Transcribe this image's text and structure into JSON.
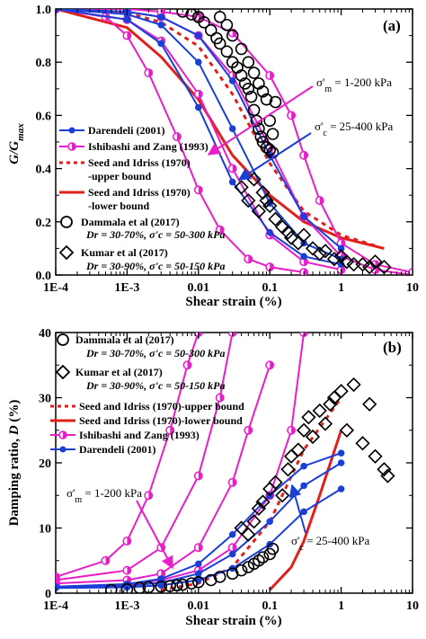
{
  "chart_data": [
    {
      "type": "line",
      "panel_label": "(a)",
      "xlabel": "Shear strain (%)",
      "ylabel": "G/G_max",
      "xscale": "log",
      "xlim": [
        0.0001,
        10
      ],
      "ylim": [
        0,
        1.0
      ],
      "xticks": [
        "1E-4",
        "1E-3",
        "0.01",
        "0.1",
        "1",
        "10"
      ],
      "yticks": [
        "0.0",
        "0.2",
        "0.4",
        "0.6",
        "0.8",
        "1.0"
      ],
      "legend": [
        {
          "id": "darendeli",
          "text": "Darendeli (2001)"
        },
        {
          "id": "ishibashi",
          "text": "Ishibashi and Zang (1993)"
        },
        {
          "id": "seed_upper",
          "text": "Seed and Idriss (1970)"
        },
        {
          "id": "seed_upper_2",
          "text": "-upper bound"
        },
        {
          "id": "seed_lower",
          "text": "Seed and Idriss (1970)"
        },
        {
          "id": "seed_lower_2",
          "text": "-lower bound"
        },
        {
          "id": "dammala",
          "text": "Dammala et al (2017)"
        },
        {
          "id": "dammala_2",
          "text": "Dr = 30-70%, σ'c = 50-300 kPa"
        },
        {
          "id": "kumar",
          "text": "Kumar et al (2017)"
        },
        {
          "id": "kumar_2",
          "text": "Dr = 30-90%, σ'c = 50-150 kPa"
        }
      ],
      "annotations": [
        "σ'm = 1-200 kPa",
        "σ'c = 25-400 kPa"
      ],
      "series": [
        {
          "name": "Seed and Idriss (1970)-upper bound",
          "style": "dashed",
          "color": "#e0201b",
          "x": [
            0.0001,
            0.001,
            0.003,
            0.01,
            0.03,
            0.1,
            0.3,
            1,
            3
          ],
          "y": [
            1.0,
            0.985,
            0.95,
            0.86,
            0.68,
            0.42,
            0.24,
            0.15,
            0.11
          ]
        },
        {
          "name": "Seed and Idriss (1970)-lower bound",
          "style": "solid",
          "color": "#e0201b",
          "x": [
            0.0001,
            0.001,
            0.003,
            0.01,
            0.03,
            0.1,
            0.3,
            1,
            4
          ],
          "y": [
            1.0,
            0.93,
            0.82,
            0.66,
            0.45,
            0.3,
            0.2,
            0.14,
            0.1
          ]
        },
        {
          "name": "Ishibashi and Zang (1993) σ'm=1",
          "color": "#e81ec8",
          "x": [
            0.0001,
            0.0005,
            0.001,
            0.002,
            0.005,
            0.01,
            0.02,
            0.05,
            0.1,
            0.3
          ],
          "y": [
            1.0,
            0.97,
            0.9,
            0.76,
            0.52,
            0.32,
            0.17,
            0.06,
            0.03,
            0.01
          ]
        },
        {
          "name": "Ishibashi and Zang (1993) σ'm=10",
          "color": "#e81ec8",
          "x": [
            0.0001,
            0.001,
            0.003,
            0.01,
            0.03,
            0.1,
            0.3,
            1
          ],
          "y": [
            1.0,
            0.96,
            0.88,
            0.68,
            0.4,
            0.15,
            0.05,
            0.02
          ]
        },
        {
          "name": "Ishibashi and Zang (1993) σ'm=50",
          "color": "#e81ec8",
          "x": [
            0.0001,
            0.001,
            0.003,
            0.01,
            0.03,
            0.1,
            0.3,
            1,
            3,
            10
          ],
          "y": [
            1.0,
            0.99,
            0.97,
            0.9,
            0.75,
            0.48,
            0.22,
            0.07,
            0.02,
            0.0
          ]
        },
        {
          "name": "Ishibashi and Zang (1993) σ'm=200",
          "color": "#e81ec8",
          "x": [
            0.0001,
            0.001,
            0.003,
            0.01,
            0.03,
            0.1,
            0.2,
            0.3,
            0.5,
            1,
            3,
            10
          ],
          "y": [
            1.0,
            1.0,
            0.99,
            0.97,
            0.91,
            0.75,
            0.6,
            0.45,
            0.28,
            0.12,
            0.04,
            0.01
          ]
        },
        {
          "name": "Darendeli (2001) σ'c=25",
          "color": "#1a3fd6",
          "x": [
            0.0001,
            0.001,
            0.003,
            0.01,
            0.03,
            0.1,
            0.3,
            1
          ],
          "y": [
            1.0,
            0.96,
            0.87,
            0.63,
            0.35,
            0.16,
            0.07,
            0.04
          ]
        },
        {
          "name": "Darendeli (2001) σ'c=100",
          "color": "#1a3fd6",
          "x": [
            0.0001,
            0.001,
            0.003,
            0.01,
            0.03,
            0.1,
            0.3,
            1
          ],
          "y": [
            1.0,
            0.98,
            0.94,
            0.8,
            0.55,
            0.27,
            0.12,
            0.06
          ]
        },
        {
          "name": "Darendeli (2001) σ'c=400",
          "color": "#1a3fd6",
          "x": [
            0.0001,
            0.001,
            0.003,
            0.01,
            0.03,
            0.1,
            0.3,
            1
          ],
          "y": [
            1.0,
            0.99,
            0.97,
            0.9,
            0.73,
            0.45,
            0.22,
            0.1
          ]
        },
        {
          "name": "Dammala et al (2017)",
          "marker": "circle",
          "x": [
            0.006,
            0.008,
            0.01,
            0.012,
            0.015,
            0.018,
            0.02,
            0.025,
            0.03,
            0.035,
            0.04,
            0.045,
            0.05,
            0.055,
            0.06,
            0.065,
            0.07,
            0.075,
            0.08,
            0.09,
            0.1,
            0.11
          ],
          "y": [
            0.99,
            0.98,
            0.97,
            0.95,
            0.92,
            0.89,
            0.87,
            0.84,
            0.8,
            0.78,
            0.75,
            0.72,
            0.7,
            0.67,
            0.62,
            0.58,
            0.55,
            0.52,
            0.5,
            0.48,
            0.47,
            0.46
          ]
        },
        {
          "name": "Dammala et al (2017) set 2",
          "marker": "circle",
          "x": [
            0.02,
            0.025,
            0.03,
            0.04,
            0.05,
            0.06,
            0.07,
            0.08,
            0.09,
            0.1,
            0.11,
            0.12
          ],
          "y": [
            0.97,
            0.94,
            0.9,
            0.85,
            0.8,
            0.76,
            0.72,
            0.69,
            0.66,
            0.58,
            0.53,
            0.65
          ]
        },
        {
          "name": "Kumar et al (2017)",
          "marker": "diamond",
          "x": [
            0.04,
            0.05,
            0.06,
            0.07,
            0.08,
            0.09,
            0.1,
            0.12,
            0.15,
            0.18,
            0.2,
            0.25,
            0.3,
            0.4,
            0.5,
            0.6,
            0.8,
            1.0,
            1.2,
            1.5,
            2.0,
            2.5,
            3.0,
            4.0
          ],
          "y": [
            0.33,
            0.28,
            0.36,
            0.24,
            0.31,
            0.28,
            0.26,
            0.21,
            0.18,
            0.16,
            0.14,
            0.12,
            0.15,
            0.1,
            0.08,
            0.09,
            0.06,
            0.07,
            0.05,
            0.04,
            0.04,
            0.03,
            0.05,
            0.03
          ]
        }
      ]
    },
    {
      "type": "line",
      "panel_label": "(b)",
      "xlabel": "Shear strain (%)",
      "ylabel": "Damping ratio, D (%)",
      "xscale": "log",
      "xlim": [
        0.0001,
        10
      ],
      "ylim": [
        0,
        40
      ],
      "xticks": [
        "1E-4",
        "1E-3",
        "0.01",
        "0.1",
        "1",
        "10"
      ],
      "yticks": [
        "0",
        "10",
        "20",
        "30",
        "40"
      ],
      "legend": [
        {
          "id": "dammala",
          "text": "Dammala et al (2017)"
        },
        {
          "id": "dammala_2",
          "text": "Dr = 30-70%, σ'c = 50-300 kPa"
        },
        {
          "id": "kumar",
          "text": "Kumar et al (2017)"
        },
        {
          "id": "kumar_2",
          "text": "Dr = 30-90%, σ'c = 50-150 kPa"
        },
        {
          "id": "seed_upper",
          "text": "Seed and Idriss (1970)-upper bound"
        },
        {
          "id": "seed_lower",
          "text": "Seed and Idriss (1970)-lower bound"
        },
        {
          "id": "ishibashi",
          "text": "Ishibashi and Zang (1993)"
        },
        {
          "id": "darendeli",
          "text": "Darendeli (2001)"
        }
      ],
      "annotations": [
        "σ'm = 1-200 kPa",
        "σ'c = 25-400 kPa"
      ],
      "series": [
        {
          "name": "Seed and Idriss (1970)-upper bound",
          "style": "dashed",
          "color": "#e0201b",
          "x": [
            0.003,
            0.01,
            0.03,
            0.1,
            0.3,
            1
          ],
          "y": [
            0.5,
            1.5,
            4,
            11,
            22,
            30
          ]
        },
        {
          "name": "Seed and Idriss (1970)-lower bound",
          "style": "solid",
          "color": "#e0201b",
          "x": [
            0.1,
            0.2,
            0.3,
            0.5,
            1
          ],
          "y": [
            0.5,
            4,
            8,
            15,
            25
          ]
        },
        {
          "name": "Ishibashi and Zang (1993) σ'm=1",
          "color": "#e81ec8",
          "x": [
            0.0001,
            0.0005,
            0.001,
            0.002,
            0.004,
            0.007,
            0.01
          ],
          "y": [
            2.5,
            5,
            8,
            15,
            25,
            35,
            40
          ]
        },
        {
          "name": "Ishibashi and Zang (1993) σ'm=10",
          "color": "#e81ec8",
          "x": [
            0.0001,
            0.001,
            0.003,
            0.01,
            0.02,
            0.03
          ],
          "y": [
            2,
            3.5,
            7,
            18,
            30,
            40
          ]
        },
        {
          "name": "Ishibashi and Zang (1993) σ'm=50",
          "color": "#e81ec8",
          "x": [
            0.0001,
            0.001,
            0.003,
            0.01,
            0.03,
            0.05,
            0.1
          ],
          "y": [
            1.5,
            2,
            3,
            7,
            17,
            25,
            35
          ]
        },
        {
          "name": "Ishibashi and Zang (1993) σ'm=200",
          "color": "#e81ec8",
          "x": [
            0.0001,
            0.001,
            0.003,
            0.01,
            0.03,
            0.1,
            0.2,
            0.3
          ],
          "y": [
            1,
            1.3,
            2,
            3.5,
            7,
            15,
            25,
            40
          ]
        },
        {
          "name": "Darendeli (2001) σ'c=25",
          "color": "#1a3fd6",
          "x": [
            0.0001,
            0.001,
            0.003,
            0.01,
            0.03,
            0.1,
            0.3,
            1
          ],
          "y": [
            1,
            1.4,
            2.2,
            4.5,
            9,
            15,
            19.5,
            21.5
          ]
        },
        {
          "name": "Darendeli (2001) σ'c=100",
          "color": "#1a3fd6",
          "x": [
            0.0001,
            0.001,
            0.003,
            0.01,
            0.03,
            0.1,
            0.3,
            1
          ],
          "y": [
            0.9,
            1.1,
            1.6,
            3,
            6,
            11,
            16.5,
            20
          ]
        },
        {
          "name": "Darendeli (2001) σ'c=400",
          "color": "#1a3fd6",
          "x": [
            0.0001,
            0.001,
            0.003,
            0.01,
            0.03,
            0.1,
            0.3,
            1
          ],
          "y": [
            0.8,
            0.9,
            1.2,
            2,
            3.8,
            7.5,
            12.5,
            16
          ]
        },
        {
          "name": "Dammala et al (2017)",
          "marker": "circle",
          "x": [
            0.0006,
            0.001,
            0.0015,
            0.002,
            0.003,
            0.004,
            0.005,
            0.006,
            0.008,
            0.01,
            0.015,
            0.02,
            0.03,
            0.04,
            0.05,
            0.06,
            0.07,
            0.08,
            0.1,
            0.11
          ],
          "y": [
            0.5,
            0.6,
            0.8,
            0.9,
            1.0,
            1.1,
            1.2,
            1.3,
            1.5,
            1.7,
            2.0,
            2.5,
            3.0,
            3.5,
            4.0,
            4.5,
            5.0,
            5.5,
            6.0,
            6.8
          ]
        },
        {
          "name": "Kumar et al (2017)",
          "marker": "diamond",
          "x": [
            0.04,
            0.05,
            0.06,
            0.07,
            0.08,
            0.1,
            0.12,
            0.15,
            0.18,
            0.2,
            0.25,
            0.3,
            0.35,
            0.4,
            0.5,
            0.6,
            0.7,
            0.8,
            1.0,
            1.2,
            1.5,
            2.0,
            2.5,
            3.0,
            4.0,
            4.5
          ],
          "y": [
            10,
            9,
            11,
            13,
            14,
            16,
            17,
            15,
            19,
            21,
            22,
            25,
            27,
            24,
            28,
            26,
            29,
            30,
            31,
            25,
            32,
            23,
            29,
            21,
            19,
            18
          ]
        }
      ]
    }
  ]
}
